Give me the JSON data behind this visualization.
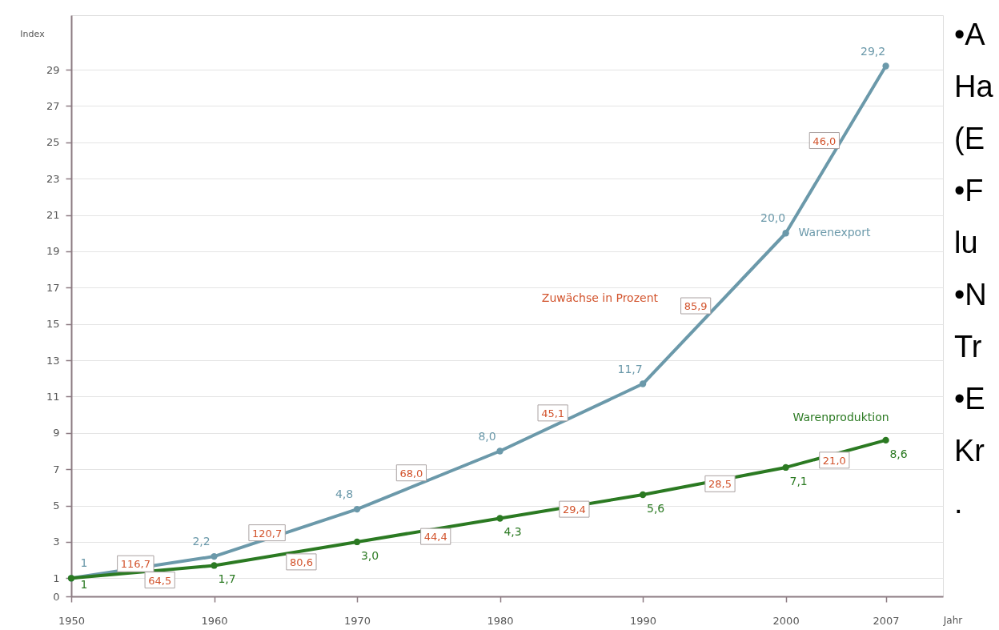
{
  "chart_data": {
    "type": "line",
    "xlabel": "Jahr",
    "ylabel": "Index",
    "x": [
      1950,
      1960,
      1970,
      1980,
      1990,
      2000,
      2007
    ],
    "xlim": [
      1950,
      2011
    ],
    "xticks": [
      1950,
      1960,
      1970,
      1980,
      1990,
      2000,
      2007
    ],
    "ylim": [
      0,
      32
    ],
    "yticks": [
      0,
      1,
      3,
      5,
      7,
      9,
      11,
      13,
      15,
      17,
      19,
      21,
      23,
      25,
      27,
      29
    ],
    "grid": "y",
    "marker": "circle",
    "line_style": "solid",
    "series": [
      {
        "name": "Warenexport",
        "color": "#6b99aa",
        "values": [
          1,
          2.2,
          4.8,
          8.0,
          11.7,
          20.0,
          29.2
        ],
        "value_labels": [
          "1",
          "2,2",
          "4,8",
          "8,0",
          "11,7",
          "20,0",
          "29,2"
        ]
      },
      {
        "name": "Warenproduktion",
        "color": "#2b7a22",
        "values": [
          1,
          1.7,
          3.0,
          4.3,
          5.6,
          7.1,
          8.6
        ],
        "value_labels": [
          "1",
          "1,7",
          "3,0",
          "4,3",
          "5,6",
          "7,1",
          "8,6"
        ]
      }
    ],
    "annotations": [
      "Zuwächse in Prozent",
      {
        "text": "116,7",
        "x": 1954.5,
        "y": 1.8
      },
      {
        "text": "120,7",
        "x": 1963.7,
        "y": 3.5
      },
      {
        "text": "68,0",
        "x": 1973.8,
        "y": 6.8
      },
      {
        "text": "45,1",
        "x": 1983.7,
        "y": 10.1
      },
      {
        "text": "85,9",
        "x": 1993.7,
        "y": 16.0
      },
      {
        "text": "46,0",
        "x": 2002.7,
        "y": 25.1
      },
      {
        "text": "64,5",
        "x": 1956.2,
        "y": 0.9
      },
      {
        "text": "80,6",
        "x": 1966.1,
        "y": 1.9
      },
      {
        "text": "44,4",
        "x": 1975.5,
        "y": 3.3
      },
      {
        "text": "29,4",
        "x": 1985.2,
        "y": 4.8
      },
      {
        "text": "28,5",
        "x": 1995.4,
        "y": 6.2
      },
      {
        "text": "21,0",
        "x": 2003.4,
        "y": 7.5
      },
      "•A",
      "Ha",
      "(E",
      "•F",
      "lu",
      "•N",
      "Tr",
      "•E",
      "Kr",
      "."
    ]
  }
}
